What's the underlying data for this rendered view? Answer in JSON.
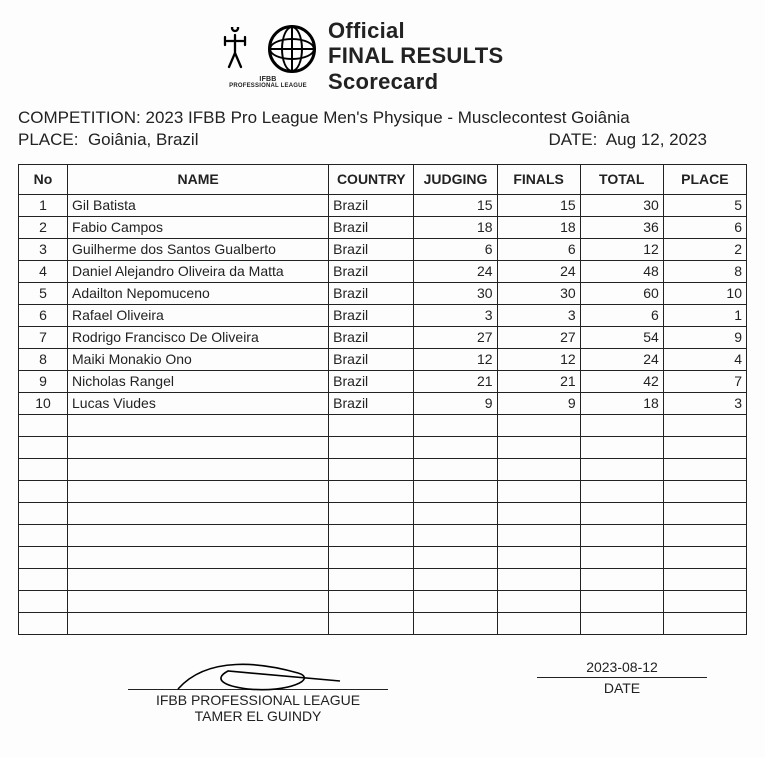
{
  "brand": {
    "line1": "Official",
    "line2": "FINAL RESULTS",
    "line3": "Scorecard",
    "logo_top": "IFBB",
    "logo_sub": "PROFESSIONAL LEAGUE"
  },
  "meta": {
    "competition_label": "COMPETITION:",
    "competition": "2023 IFBB Pro League Men's Physique - Musclecontest Goiânia",
    "place_label": "PLACE:",
    "place": "Goiânia, Brazil",
    "date_label": "DATE:",
    "date": "Aug 12, 2023"
  },
  "colors": {
    "text": "#222222",
    "border": "#222222",
    "bg": "#fdfdfd"
  },
  "table": {
    "columns": [
      "No",
      "NAME",
      "COUNTRY",
      "JUDGING",
      "FINALS",
      "TOTAL",
      "PLACE"
    ],
    "total_rows": 20,
    "rows": [
      {
        "no": "1",
        "name": "Gil Batista",
        "country": "Brazil",
        "judging": "15",
        "finals": "15",
        "total": "30",
        "place": "5"
      },
      {
        "no": "2",
        "name": "Fabio Campos",
        "country": "Brazil",
        "judging": "18",
        "finals": "18",
        "total": "36",
        "place": "6"
      },
      {
        "no": "3",
        "name": "Guilherme dos Santos Gualberto",
        "country": "Brazil",
        "judging": "6",
        "finals": "6",
        "total": "12",
        "place": "2"
      },
      {
        "no": "4",
        "name": "Daniel Alejandro Oliveira da Matta",
        "country": "Brazil",
        "judging": "24",
        "finals": "24",
        "total": "48",
        "place": "8"
      },
      {
        "no": "5",
        "name": "Adailton Nepomuceno",
        "country": "Brazil",
        "judging": "30",
        "finals": "30",
        "total": "60",
        "place": "10"
      },
      {
        "no": "6",
        "name": "Rafael Oliveira",
        "country": "Brazil",
        "judging": "3",
        "finals": "3",
        "total": "6",
        "place": "1"
      },
      {
        "no": "7",
        "name": "Rodrigo Francisco De Oliveira",
        "country": "Brazil",
        "judging": "27",
        "finals": "27",
        "total": "54",
        "place": "9"
      },
      {
        "no": "8",
        "name": "Maiki Monakio Ono",
        "country": "Brazil",
        "judging": "12",
        "finals": "12",
        "total": "24",
        "place": "4"
      },
      {
        "no": "9",
        "name": "Nicholas Rangel",
        "country": "Brazil",
        "judging": "21",
        "finals": "21",
        "total": "42",
        "place": "7"
      },
      {
        "no": "10",
        "name": "Lucas Viudes",
        "country": "Brazil",
        "judging": "9",
        "finals": "9",
        "total": "18",
        "place": "3"
      }
    ]
  },
  "footer": {
    "org": "IFBB PROFESSIONAL LEAGUE",
    "signer": "TAMER EL GUINDY",
    "date_value": "2023-08-12",
    "date_label": "DATE"
  }
}
